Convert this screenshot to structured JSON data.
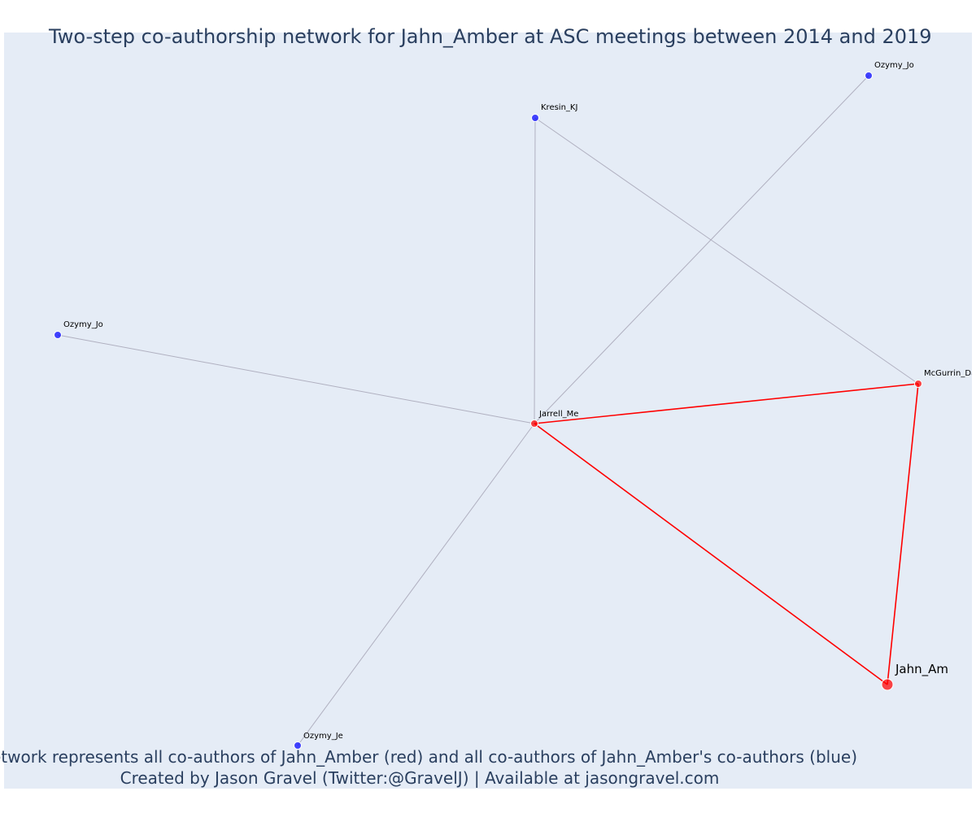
{
  "title": "Two-step co-authorship network for Jahn_Amber at ASC meetings between 2014 and 2019",
  "caption": {
    "line1": "Network represents all co-authors of Jahn_Amber (red) and all co-authors of Jahn_Amber's co-authors (blue)",
    "line2": "Created by Jason Gravel (Twitter:@GravelJ) | Available at jasongravel.com"
  },
  "colors": {
    "plot_background": "#e5ecf6",
    "first_degree": "#ff0000",
    "second_degree": "#0000ff",
    "edge_primary": "#ff0000",
    "edge_secondary": "#b0b0c0",
    "text": "#2a3f5f"
  },
  "nodes": [
    {
      "id": "jahn",
      "label": "Jahn_Am",
      "group": "first_degree",
      "focal": true
    },
    {
      "id": "jarrell",
      "label": "Jarrell_Me",
      "group": "first_degree"
    },
    {
      "id": "mcgurrin",
      "label": "McGurrin_Da",
      "group": "first_degree"
    },
    {
      "id": "kresin",
      "label": "Kresin_KJ",
      "group": "second_degree"
    },
    {
      "id": "ozymy_jo_top",
      "label": "Ozymy_Jo",
      "group": "second_degree"
    },
    {
      "id": "ozymy_jo_left",
      "label": "Ozymy_Jo",
      "group": "second_degree"
    },
    {
      "id": "ozymy_je",
      "label": "Ozymy_Je",
      "group": "second_degree"
    }
  ],
  "edges": [
    {
      "source": "jahn",
      "target": "jarrell",
      "type": "primary"
    },
    {
      "source": "jahn",
      "target": "mcgurrin",
      "type": "primary"
    },
    {
      "source": "jarrell",
      "target": "mcgurrin",
      "type": "primary"
    },
    {
      "source": "jarrell",
      "target": "kresin",
      "type": "secondary"
    },
    {
      "source": "jarrell",
      "target": "ozymy_jo_top",
      "type": "secondary"
    },
    {
      "source": "jarrell",
      "target": "ozymy_jo_left",
      "type": "secondary"
    },
    {
      "source": "jarrell",
      "target": "ozymy_je",
      "type": "secondary"
    },
    {
      "source": "kresin",
      "target": "mcgurrin",
      "type": "secondary"
    }
  ]
}
